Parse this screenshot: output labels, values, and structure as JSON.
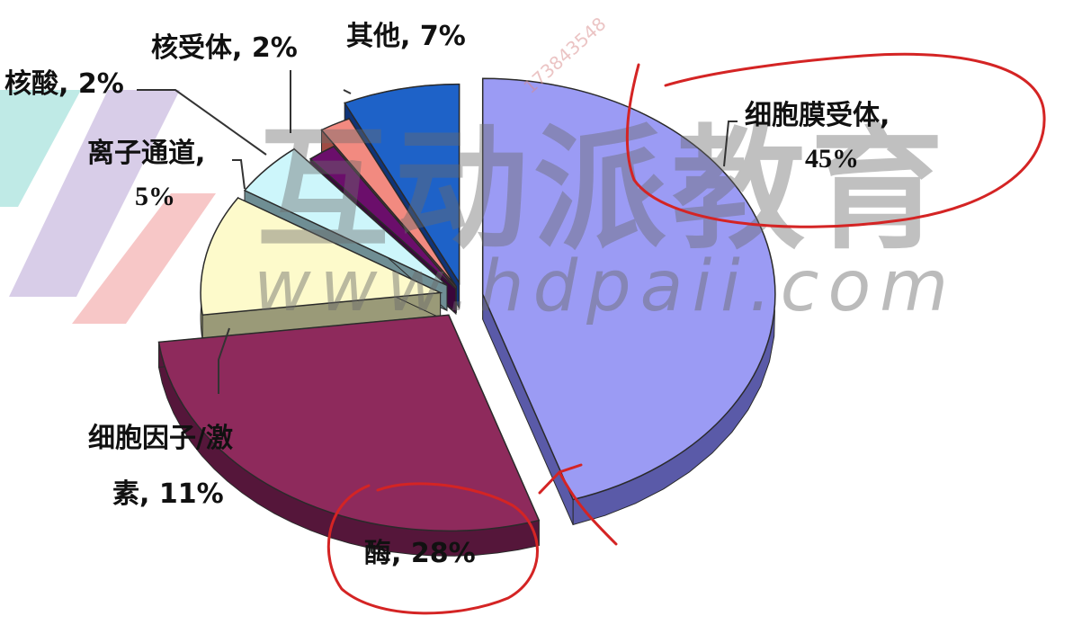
{
  "chart_data": {
    "type": "pie",
    "title": "",
    "slices": [
      {
        "key": "membrane",
        "label_lines": [
          "细胞膜受体,",
          "45%"
        ],
        "value": 45,
        "color": "#9b9bf4",
        "side": "#5a5aa8"
      },
      {
        "key": "enzyme",
        "label_lines": [
          "酶, 28%"
        ],
        "value": 28,
        "color": "#8e2a5c",
        "side": "#55163a"
      },
      {
        "key": "cytokine",
        "label_lines": [
          "细胞因子/激",
          "素, 11%"
        ],
        "value": 11,
        "color": "#fdfacb",
        "side": "#9a9a78"
      },
      {
        "key": "ion",
        "label_lines": [
          "离子通道,",
          "5%"
        ],
        "value": 5,
        "color": "#cdf6fb",
        "side": "#6f8e94"
      },
      {
        "key": "nucleic",
        "label_lines": [
          "核酸, 2%"
        ],
        "value": 2,
        "color": "#6b0e6b",
        "side": "#3a073a"
      },
      {
        "key": "nuclear",
        "label_lines": [
          "核受体, 2%"
        ],
        "value": 2,
        "color": "#f28a80",
        "side": "#a04c44"
      },
      {
        "key": "other",
        "label_lines": [
          "其他, 7%"
        ],
        "value": 7,
        "color": "#1e62c8",
        "side": "#0f3478"
      }
    ]
  },
  "watermark": {
    "brand": "互动派教育",
    "url": "www.hdpaii.com",
    "phone": "173843548"
  }
}
